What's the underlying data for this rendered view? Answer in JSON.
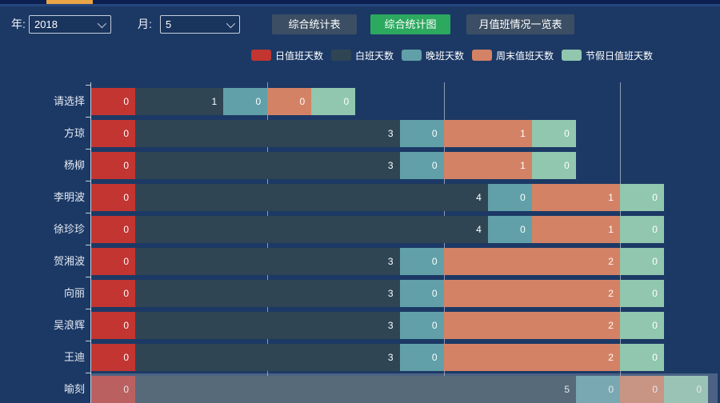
{
  "window": {
    "tab_indicator_color": "#e9a546"
  },
  "controls": {
    "year_label": "年:",
    "year_value": "2018",
    "month_label": "月:",
    "month_value": "5",
    "buttons": [
      {
        "label": "综合统计表",
        "active": false
      },
      {
        "label": "综合统计图",
        "active": true
      },
      {
        "label": "月值班情况一览表",
        "active": false
      }
    ],
    "active_button_color": "#2ca95f",
    "button_color": "#3c4e63"
  },
  "icons": {
    "year_select_chevron": "chevron-down",
    "month_select_chevron": "chevron-down"
  },
  "chart_data": {
    "type": "bar",
    "orientation": "horizontal",
    "stacked": true,
    "grid": true,
    "legend_position": "top",
    "categories": [
      "请选择",
      "方琼",
      "杨柳",
      "李明波",
      "徐珍珍",
      "贺湘波",
      "向丽",
      "吴浪辉",
      "王迪",
      "喻刻"
    ],
    "series": [
      {
        "name": "日值班天数",
        "color": "#c23531",
        "values": [
          0,
          0,
          0,
          0,
          0,
          0,
          0,
          0,
          0,
          0
        ]
      },
      {
        "name": "白班天数",
        "color": "#2f4554",
        "values": [
          1,
          3,
          3,
          4,
          4,
          3,
          3,
          3,
          3,
          5
        ]
      },
      {
        "name": "晚班天数",
        "color": "#61a0a8",
        "values": [
          0,
          0,
          0,
          0,
          0,
          0,
          0,
          0,
          0,
          0
        ]
      },
      {
        "name": "周末值班天数",
        "color": "#d48265",
        "values": [
          0,
          1,
          1,
          1,
          1,
          2,
          2,
          2,
          2,
          0
        ]
      },
      {
        "name": "节假日值班天数",
        "color": "#91c7ae",
        "values": [
          0,
          0,
          0,
          0,
          0,
          0,
          0,
          0,
          0,
          0
        ]
      }
    ],
    "value_labels_shown": true,
    "highlighted_category": "喻刻",
    "xlim": [
      0,
      7
    ],
    "x_gridline_interval": 2
  }
}
